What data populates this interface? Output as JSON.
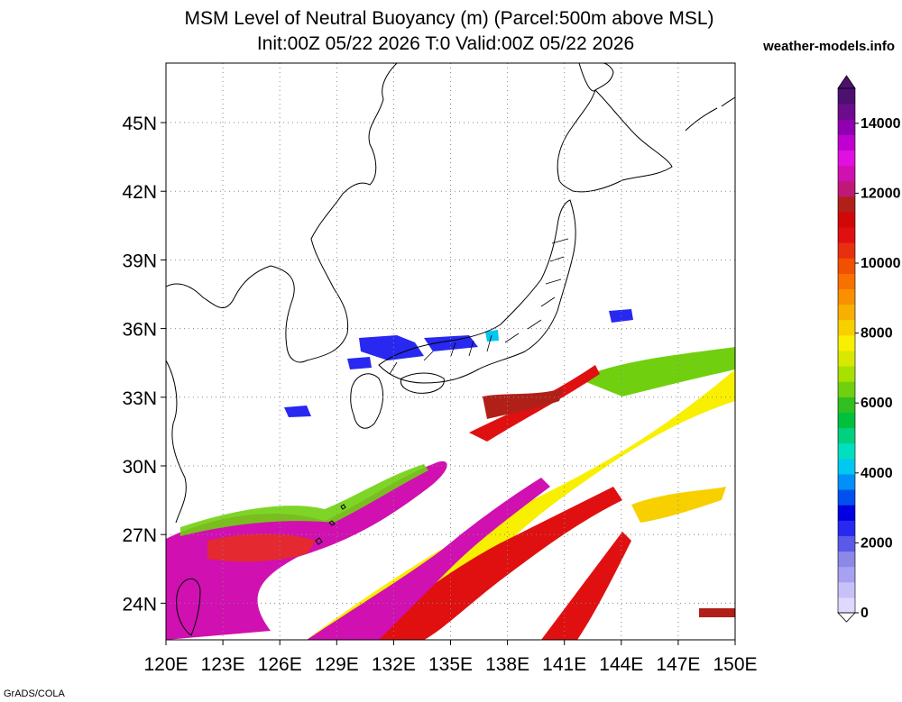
{
  "header": {
    "title_line1": "MSM Level of Neutral Buoyancy (m) (Parcel:500m above MSL)",
    "title_line2": "Init:00Z 05/22 2026  T:0 Valid:00Z 05/22 2026",
    "credit": "weather-models.info"
  },
  "footer": {
    "software": "GrADS/COLA"
  },
  "map": {
    "lon_range": [
      120,
      150
    ],
    "lat_range": [
      22.4,
      47.6
    ],
    "lon_ticks": [
      {
        "v": 120,
        "label": "120E"
      },
      {
        "v": 123,
        "label": "123E"
      },
      {
        "v": 126,
        "label": "126E"
      },
      {
        "v": 129,
        "label": "129E"
      },
      {
        "v": 132,
        "label": "132E"
      },
      {
        "v": 135,
        "label": "135E"
      },
      {
        "v": 138,
        "label": "138E"
      },
      {
        "v": 141,
        "label": "141E"
      },
      {
        "v": 144,
        "label": "144E"
      },
      {
        "v": 147,
        "label": "147E"
      },
      {
        "v": 150,
        "label": "150E"
      }
    ],
    "lat_ticks": [
      {
        "v": 24,
        "label": "24N"
      },
      {
        "v": 27,
        "label": "27N"
      },
      {
        "v": 30,
        "label": "30N"
      },
      {
        "v": 33,
        "label": "33N"
      },
      {
        "v": 36,
        "label": "36N"
      },
      {
        "v": 39,
        "label": "39N"
      },
      {
        "v": 42,
        "label": "42N"
      },
      {
        "v": 45,
        "label": "45N"
      }
    ],
    "grid": "dotted"
  },
  "colorbar": {
    "min": 0,
    "max": 15000,
    "labels": [
      {
        "v": 0,
        "label": "0"
      },
      {
        "v": 2000,
        "label": "2000"
      },
      {
        "v": 4000,
        "label": "4000"
      },
      {
        "v": 6000,
        "label": "6000"
      },
      {
        "v": 8000,
        "label": "8000"
      },
      {
        "v": 10000,
        "label": "10000"
      },
      {
        "v": 12000,
        "label": "12000"
      },
      {
        "v": 14000,
        "label": "14000"
      }
    ],
    "colors": [
      "#e0d8ff",
      "#c8c0f8",
      "#a8a0f0",
      "#8c88e8",
      "#5a5ae8",
      "#2828f0",
      "#0000e0",
      "#0050f0",
      "#0090f8",
      "#00c8f0",
      "#00e0c0",
      "#00d080",
      "#00c040",
      "#30c020",
      "#70d010",
      "#a8e000",
      "#d8e800",
      "#f8f000",
      "#f8d000",
      "#f8b000",
      "#f89000",
      "#f87000",
      "#f05000",
      "#e83010",
      "#e01010",
      "#d00808",
      "#b02018",
      "#c01878",
      "#d010b0",
      "#e010e0",
      "#c000d0",
      "#9000b0",
      "#6c0c8c",
      "#4c1070"
    ]
  }
}
